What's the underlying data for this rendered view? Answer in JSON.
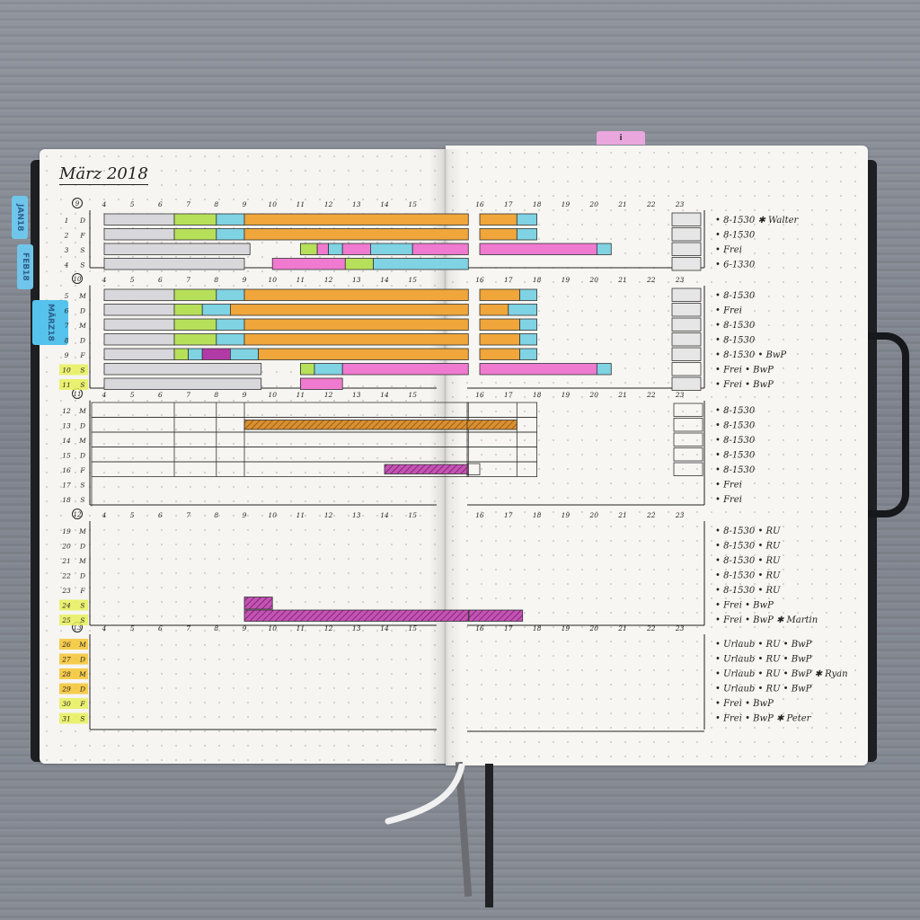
{
  "journal": {
    "month_title": "März 2018",
    "tabs": {
      "blue_1": "JAN18",
      "blue_2": "FEB18",
      "blue_3": "MÄRZ18",
      "pink_top": "i"
    }
  },
  "hour_labels_left": [
    "4",
    "5",
    "6",
    "7",
    "8",
    "9",
    "10",
    "11",
    "12",
    "13",
    "14",
    "15"
  ],
  "hour_labels_right": [
    "16",
    "17",
    "18",
    "19",
    "20",
    "21",
    "22",
    "23"
  ],
  "weeks": [
    {
      "week_no": "9",
      "days": [
        {
          "num": "1",
          "letter": "D",
          "note": "8-1530 ✱ Walter"
        },
        {
          "num": "2",
          "letter": "F",
          "note": "8-1530"
        },
        {
          "num": "3",
          "letter": "S",
          "note": "Frei"
        },
        {
          "num": "4",
          "letter": "S",
          "note": "6-1330"
        }
      ]
    },
    {
      "week_no": "10",
      "days": [
        {
          "num": "5",
          "letter": "M",
          "note": "8-1530"
        },
        {
          "num": "6",
          "letter": "D",
          "note": "Frei"
        },
        {
          "num": "7",
          "letter": "M",
          "note": "8-1530"
        },
        {
          "num": "8",
          "letter": "D",
          "note": "8-1530"
        },
        {
          "num": "9",
          "letter": "F",
          "note": "8-1530 • BwP"
        },
        {
          "num": "10",
          "letter": "S",
          "note": "Frei • BwP"
        },
        {
          "num": "11",
          "letter": "S",
          "note": "Frei • BwP"
        }
      ]
    },
    {
      "week_no": "11",
      "days": [
        {
          "num": "12",
          "letter": "M",
          "note": "8-1530"
        },
        {
          "num": "13",
          "letter": "D",
          "note": "8-1530"
        },
        {
          "num": "14",
          "letter": "M",
          "note": "8-1530"
        },
        {
          "num": "15",
          "letter": "D",
          "note": "8-1530"
        },
        {
          "num": "16",
          "letter": "F",
          "note": "8-1530"
        },
        {
          "num": "17",
          "letter": "S",
          "note": "Frei"
        },
        {
          "num": "18",
          "letter": "S",
          "note": "Frei"
        }
      ]
    },
    {
      "week_no": "12",
      "days": [
        {
          "num": "19",
          "letter": "M",
          "note": "8-1530 • RU"
        },
        {
          "num": "20",
          "letter": "D",
          "note": "8-1530 • RU"
        },
        {
          "num": "21",
          "letter": "M",
          "note": "8-1530 • RU"
        },
        {
          "num": "22",
          "letter": "D",
          "note": "8-1530 • RU"
        },
        {
          "num": "23",
          "letter": "F",
          "note": "8-1530 • RU"
        },
        {
          "num": "24",
          "letter": "S",
          "note": "Frei • BwP"
        },
        {
          "num": "25",
          "letter": "S",
          "note": "Frei • BwP ✱ Martin"
        }
      ]
    },
    {
      "week_no": "13",
      "days": [
        {
          "num": "26",
          "letter": "M",
          "note": "Urlaub • RU • BwP"
        },
        {
          "num": "27",
          "letter": "D",
          "note": "Urlaub • RU • BwP"
        },
        {
          "num": "28",
          "letter": "M",
          "note": "Urlaub • RU • BwP ✱ Ryan"
        },
        {
          "num": "29",
          "letter": "D",
          "note": "Urlaub • RU • BwP"
        },
        {
          "num": "30",
          "letter": "F",
          "note": "Frei • BwP"
        },
        {
          "num": "31",
          "letter": "S",
          "note": "Frei • BwP ✱ Peter"
        }
      ]
    }
  ],
  "colors": {
    "sleep": "#d8d8dc",
    "morning": "#b7e05a",
    "commute": "#7fd3e3",
    "work": "#f0a63a",
    "work_hatched": "#c9762a",
    "leisure": "#f07ad0",
    "event": "#b13aa6",
    "weekend_highlight": "#e7f05a",
    "late_highlight": "#f4c430"
  }
}
